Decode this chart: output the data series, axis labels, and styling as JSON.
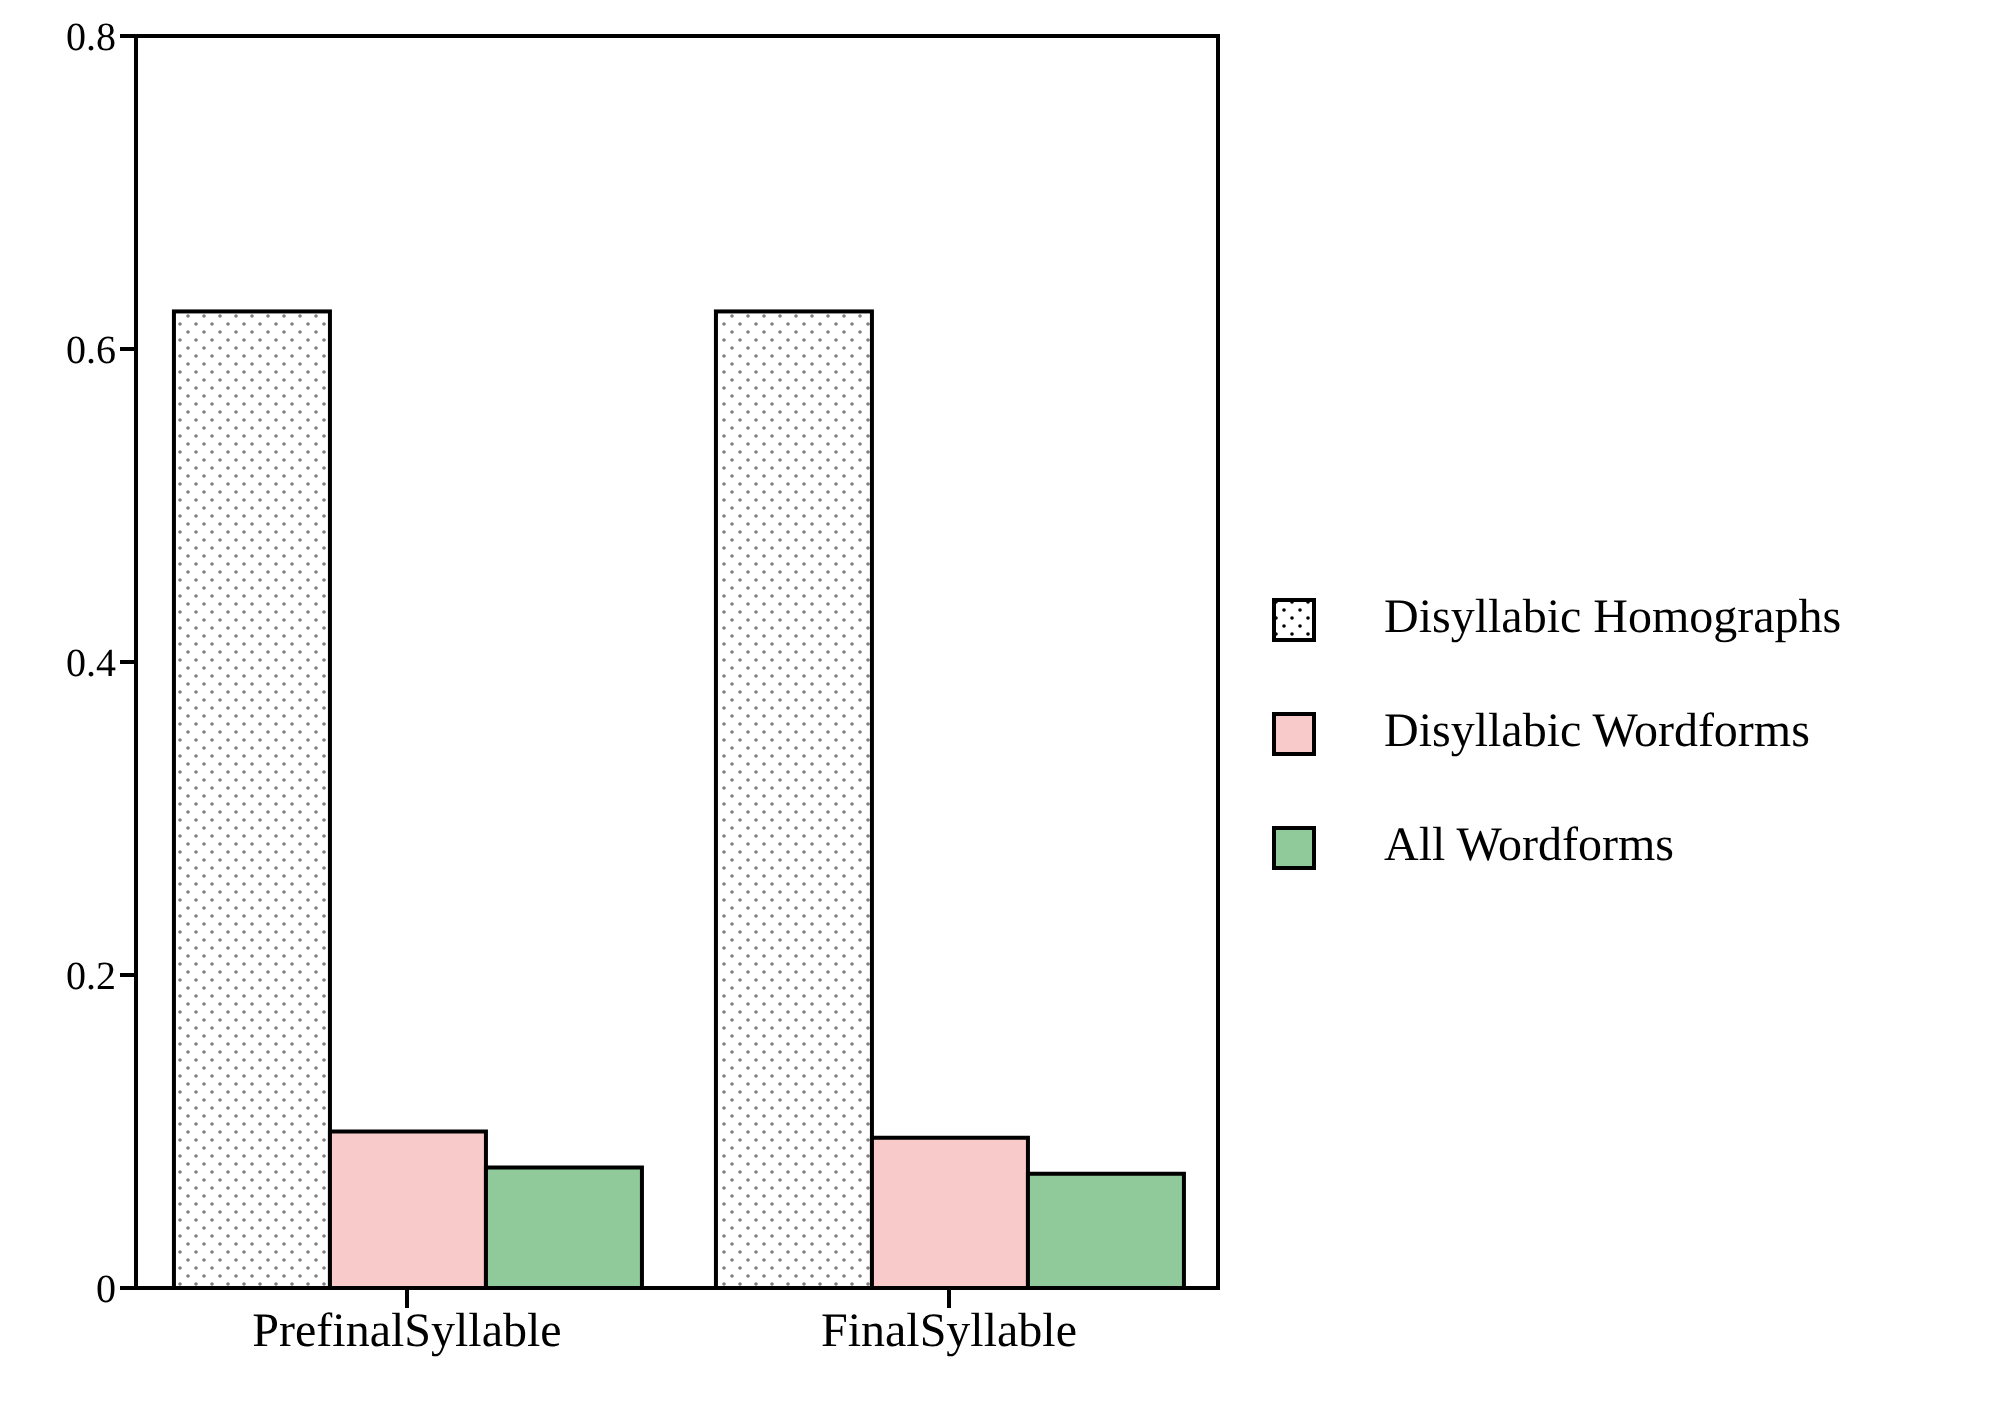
{
  "chart_data": {
    "type": "bar",
    "categories": [
      "PrefinalSyllable",
      "FinalSyllable"
    ],
    "series": [
      {
        "name": "Disyllabic Homographs",
        "color": "#ffffff",
        "values": [
          0.624,
          0.624
        ]
      },
      {
        "name": "Disyllabic Wordforms",
        "color": "#f8caca",
        "values": [
          0.1,
          0.096
        ]
      },
      {
        "name": "All Wordforms",
        "color": "#90c99a",
        "values": [
          0.077,
          0.073
        ]
      }
    ],
    "ylim": [
      0,
      0.8
    ],
    "yticks": [
      0,
      0.2,
      0.4,
      0.6,
      0.8
    ],
    "grid": false,
    "legend": "right"
  }
}
